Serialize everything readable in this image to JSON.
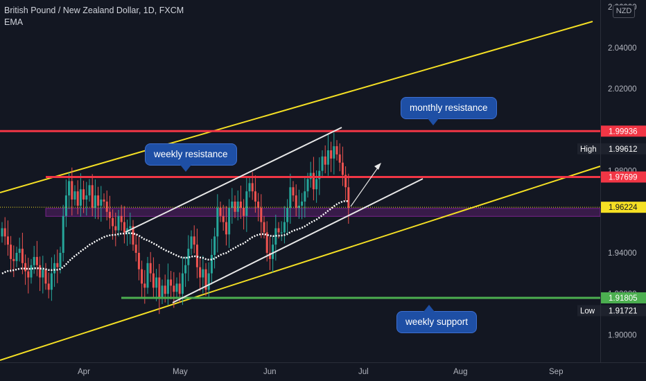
{
  "header": {
    "title": "British Pound / New Zealand Dollar, 1D, FXCM",
    "indicator": "EMA"
  },
  "currency_badge": "NZD",
  "annotations": {
    "monthly_resistance": "monthly resistance",
    "weekly_resistance": "weekly resistance",
    "weekly_support": "weekly support"
  },
  "colors": {
    "background": "#131722",
    "up_candle": "#26a69a",
    "down_candle": "#ef5350",
    "resistance_line": "#f23645",
    "support_line": "#4caf50",
    "channel_yellow": "#f5e024",
    "channel_white": "#e8e8e8",
    "zone": "#9c27b0",
    "ema": "#ffffff"
  },
  "chart_data": {
    "type": "candlestick",
    "instrument": "British Pound / New Zealand Dollar",
    "timeframe": "1D",
    "source": "FXCM",
    "x_tick_labels": [
      "Apr",
      "May",
      "Jun",
      "Jul",
      "Aug",
      "Sep"
    ],
    "y_tick_labels": [
      "2.06000",
      "2.04000",
      "2.02000",
      "1.98000",
      "1.94000",
      "1.92000",
      "1.90000"
    ],
    "y_tick_values": [
      2.06,
      2.04,
      2.02,
      1.98,
      1.94,
      1.92,
      1.9
    ],
    "ylim": [
      1.8725,
      2.065
    ],
    "grid": false,
    "price_labels": [
      {
        "label": "",
        "value": "1.99936",
        "kind": "resistance"
      },
      {
        "label": "High",
        "value": "1.99612",
        "kind": "high"
      },
      {
        "label": "",
        "value": "1.97699",
        "kind": "resistance"
      },
      {
        "label": "",
        "value": "1.96224",
        "kind": "current"
      },
      {
        "label": "",
        "value": "1.91805",
        "kind": "support"
      },
      {
        "label": "Low",
        "value": "1.91721",
        "kind": "low"
      }
    ],
    "horizontal_levels": [
      {
        "name": "monthly resistance",
        "value": 1.99936
      },
      {
        "name": "weekly resistance",
        "value": 1.97699
      },
      {
        "name": "weekly support",
        "value": 1.91805
      }
    ],
    "zone": {
      "low": 1.9578,
      "high": 1.9617
    },
    "candles_close": [
      1.952,
      1.948,
      1.944,
      1.937,
      1.936,
      1.94,
      1.942,
      1.935,
      1.931,
      1.928,
      1.934,
      1.938,
      1.934,
      1.928,
      1.932,
      1.925,
      1.922,
      1.93,
      1.935,
      1.933,
      1.94,
      1.958,
      1.968,
      1.975,
      1.966,
      1.97,
      1.963,
      1.971,
      1.966,
      1.968,
      1.973,
      1.962,
      1.968,
      1.963,
      1.966,
      1.965,
      1.96,
      1.957,
      1.953,
      1.951,
      1.958,
      1.955,
      1.95,
      1.952,
      1.953,
      1.944,
      1.94,
      1.932,
      1.925,
      1.923,
      1.935,
      1.93,
      1.923,
      1.928,
      1.918,
      1.924,
      1.92,
      1.927,
      1.924,
      1.921,
      1.925,
      1.92,
      1.93,
      1.934,
      1.942,
      1.948,
      1.944,
      1.933,
      1.928,
      1.932,
      1.922,
      1.93,
      1.939,
      1.948,
      1.962,
      1.958,
      1.955,
      1.949,
      1.962,
      1.965,
      1.96,
      1.965,
      1.962,
      1.958,
      1.97,
      1.974,
      1.97,
      1.965,
      1.962,
      1.955,
      1.95,
      1.94,
      1.937,
      1.944,
      1.952,
      1.95,
      1.95,
      1.955,
      1.962,
      1.972,
      1.968,
      1.962,
      1.963,
      1.965,
      1.97,
      1.976,
      1.979,
      1.971,
      1.976,
      1.98,
      1.987,
      1.983,
      1.99,
      1.986,
      1.992,
      1.988,
      1.984,
      1.978,
      1.972,
      1.962
    ],
    "candles_open": [
      1.948,
      1.952,
      1.948,
      1.944,
      1.937,
      1.936,
      1.94,
      1.942,
      1.935,
      1.931,
      1.928,
      1.934,
      1.938,
      1.934,
      1.928,
      1.932,
      1.925,
      1.922,
      1.93,
      1.935,
      1.933,
      1.94,
      1.958,
      1.968,
      1.975,
      1.966,
      1.97,
      1.963,
      1.971,
      1.966,
      1.968,
      1.973,
      1.962,
      1.968,
      1.963,
      1.966,
      1.965,
      1.96,
      1.957,
      1.953,
      1.951,
      1.958,
      1.955,
      1.95,
      1.952,
      1.953,
      1.944,
      1.94,
      1.932,
      1.925,
      1.923,
      1.935,
      1.93,
      1.923,
      1.928,
      1.918,
      1.924,
      1.92,
      1.927,
      1.924,
      1.921,
      1.925,
      1.92,
      1.93,
      1.934,
      1.942,
      1.948,
      1.944,
      1.933,
      1.928,
      1.932,
      1.922,
      1.93,
      1.939,
      1.948,
      1.962,
      1.958,
      1.955,
      1.949,
      1.962,
      1.965,
      1.96,
      1.965,
      1.962,
      1.958,
      1.97,
      1.974,
      1.97,
      1.965,
      1.962,
      1.955,
      1.95,
      1.94,
      1.937,
      1.944,
      1.952,
      1.95,
      1.95,
      1.955,
      1.962,
      1.972,
      1.968,
      1.962,
      1.963,
      1.965,
      1.97,
      1.976,
      1.979,
      1.971,
      1.976,
      1.98,
      1.987,
      1.983,
      1.99,
      1.986,
      1.992,
      1.988,
      1.984,
      1.978,
      1.972
    ]
  }
}
